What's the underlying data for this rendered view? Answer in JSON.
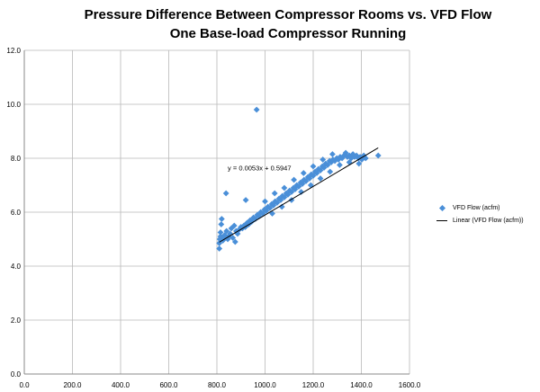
{
  "chart_data": {
    "type": "scatter",
    "title": "Pressure Difference Between Compressor Rooms vs. VFD Flow",
    "subtitle": "One Base-load Compressor Running",
    "xlabel": "",
    "ylabel": "",
    "xlim": [
      0,
      1600
    ],
    "ylim": [
      0,
      12
    ],
    "x_ticks": [
      "0.0",
      "200.0",
      "400.0",
      "600.0",
      "800.0",
      "1000.0",
      "1200.0",
      "1400.0",
      "1600.0"
    ],
    "y_ticks": [
      "0.0",
      "2.0",
      "4.0",
      "6.0",
      "8.0",
      "10.0",
      "12.0"
    ],
    "grid": true,
    "legend_position": "right",
    "series": [
      {
        "name": "VFD Flow (acfm)",
        "color": "#4a8fd8",
        "marker": "diamond",
        "points": [
          [
            810,
            4.65
          ],
          [
            810,
            4.85
          ],
          [
            812,
            5.0
          ],
          [
            815,
            5.1
          ],
          [
            815,
            5.25
          ],
          [
            818,
            5.55
          ],
          [
            820,
            5.75
          ],
          [
            825,
            4.95
          ],
          [
            828,
            5.05
          ],
          [
            832,
            5.15
          ],
          [
            838,
            6.7
          ],
          [
            840,
            5.3
          ],
          [
            845,
            5.0
          ],
          [
            848,
            5.1
          ],
          [
            855,
            5.2
          ],
          [
            860,
            5.4
          ],
          [
            866,
            5.05
          ],
          [
            872,
            5.5
          ],
          [
            876,
            4.9
          ],
          [
            880,
            5.3
          ],
          [
            886,
            5.2
          ],
          [
            892,
            5.35
          ],
          [
            900,
            5.45
          ],
          [
            906,
            5.4
          ],
          [
            912,
            5.5
          ],
          [
            918,
            5.45
          ],
          [
            920,
            6.45
          ],
          [
            925,
            5.6
          ],
          [
            932,
            5.55
          ],
          [
            938,
            5.7
          ],
          [
            945,
            5.65
          ],
          [
            952,
            5.8
          ],
          [
            960,
            5.75
          ],
          [
            965,
            9.8
          ],
          [
            968,
            5.9
          ],
          [
            975,
            5.85
          ],
          [
            982,
            6.0
          ],
          [
            990,
            5.95
          ],
          [
            998,
            6.1
          ],
          [
            1005,
            6.05
          ],
          [
            1012,
            6.2
          ],
          [
            1020,
            6.15
          ],
          [
            1028,
            6.3
          ],
          [
            1035,
            6.25
          ],
          [
            1042,
            6.4
          ],
          [
            1050,
            6.35
          ],
          [
            1058,
            6.5
          ],
          [
            1065,
            6.45
          ],
          [
            1072,
            6.6
          ],
          [
            1080,
            6.55
          ],
          [
            1088,
            6.7
          ],
          [
            1095,
            6.65
          ],
          [
            1102,
            6.8
          ],
          [
            1110,
            6.75
          ],
          [
            1118,
            6.9
          ],
          [
            1125,
            6.85
          ],
          [
            1132,
            7.0
          ],
          [
            1140,
            6.95
          ],
          [
            1148,
            7.1
          ],
          [
            1155,
            7.05
          ],
          [
            1162,
            7.2
          ],
          [
            1170,
            7.15
          ],
          [
            1178,
            7.3
          ],
          [
            1185,
            7.25
          ],
          [
            1192,
            7.4
          ],
          [
            1200,
            7.35
          ],
          [
            1208,
            7.5
          ],
          [
            1215,
            7.45
          ],
          [
            1222,
            7.6
          ],
          [
            1230,
            7.55
          ],
          [
            1238,
            7.7
          ],
          [
            1245,
            7.65
          ],
          [
            1252,
            7.8
          ],
          [
            1260,
            7.75
          ],
          [
            1268,
            7.9
          ],
          [
            1275,
            7.85
          ],
          [
            1282,
            7.95
          ],
          [
            1290,
            7.9
          ],
          [
            1298,
            8.0
          ],
          [
            1305,
            7.95
          ],
          [
            1312,
            8.05
          ],
          [
            1320,
            8.0
          ],
          [
            1328,
            8.1
          ],
          [
            1335,
            8.2
          ],
          [
            1342,
            8.05
          ],
          [
            1350,
            8.1
          ],
          [
            1358,
            8.0
          ],
          [
            1365,
            8.15
          ],
          [
            1372,
            8.05
          ],
          [
            1380,
            8.1
          ],
          [
            1388,
            8.0
          ],
          [
            1395,
            8.05
          ],
          [
            1402,
            7.95
          ],
          [
            1410,
            8.1
          ],
          [
            1418,
            8.0
          ],
          [
            1470,
            8.1
          ],
          [
            1000,
            6.4
          ],
          [
            1040,
            6.7
          ],
          [
            1080,
            6.9
          ],
          [
            1120,
            7.2
          ],
          [
            1160,
            7.45
          ],
          [
            1200,
            7.7
          ],
          [
            1240,
            7.95
          ],
          [
            1280,
            8.15
          ],
          [
            1030,
            5.95
          ],
          [
            1070,
            6.2
          ],
          [
            1110,
            6.45
          ],
          [
            1150,
            6.75
          ],
          [
            1190,
            7.0
          ],
          [
            1230,
            7.25
          ],
          [
            1270,
            7.5
          ],
          [
            1310,
            7.75
          ],
          [
            1350,
            7.85
          ],
          [
            1390,
            7.8
          ]
        ]
      }
    ],
    "trendline": {
      "name": "Linear (VFD Flow (acfm))",
      "color": "#000000",
      "slope": 0.0053,
      "intercept": 0.5947,
      "x_range": [
        810,
        1470
      ],
      "equation_label": "y = 0.0053x + 0.5947"
    }
  }
}
